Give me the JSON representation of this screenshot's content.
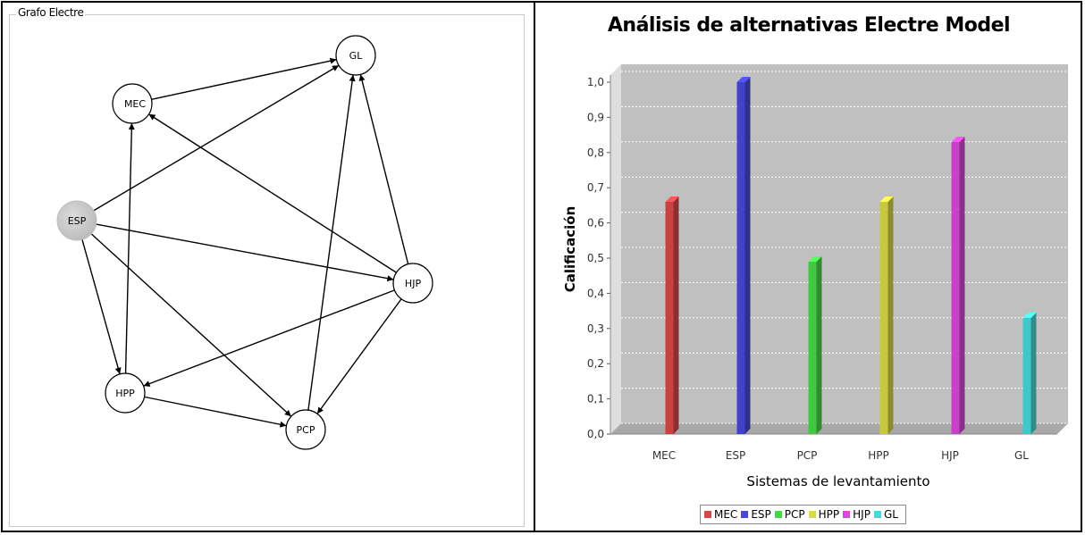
{
  "graph": {
    "title": "Grafo Electre",
    "nodes": [
      {
        "id": "GL",
        "label": "GL",
        "highlight": false
      },
      {
        "id": "MEC",
        "label": "MEC",
        "highlight": false
      },
      {
        "id": "ESP",
        "label": "ESP",
        "highlight": true
      },
      {
        "id": "HJP",
        "label": "HJP",
        "highlight": false
      },
      {
        "id": "HPP",
        "label": "HPP",
        "highlight": false
      },
      {
        "id": "PCP",
        "label": "PCP",
        "highlight": false
      }
    ],
    "edges": [
      {
        "from": "MEC",
        "to": "GL"
      },
      {
        "from": "ESP",
        "to": "GL"
      },
      {
        "from": "ESP",
        "to": "HJP"
      },
      {
        "from": "ESP",
        "to": "PCP"
      },
      {
        "from": "ESP",
        "to": "HPP"
      },
      {
        "from": "HJP",
        "to": "GL"
      },
      {
        "from": "HJP",
        "to": "MEC"
      },
      {
        "from": "HJP",
        "to": "HPP"
      },
      {
        "from": "HJP",
        "to": "PCP"
      },
      {
        "from": "HPP",
        "to": "MEC"
      },
      {
        "from": "HPP",
        "to": "PCP"
      },
      {
        "from": "PCP",
        "to": "GL"
      }
    ]
  },
  "chart_data": {
    "type": "bar",
    "title": "Análisis de alternativas Electre Model",
    "xlabel": "Sistemas de levantamiento",
    "ylabel": "Calificación",
    "categories": [
      "MEC",
      "ESP",
      "PCP",
      "HPP",
      "HJP",
      "GL"
    ],
    "values": [
      0.66,
      1.0,
      0.49,
      0.66,
      0.83,
      0.33
    ],
    "ylim": [
      0,
      1.0
    ],
    "yticks": [
      "0,0",
      "0,1",
      "0,2",
      "0,3",
      "0,4",
      "0,5",
      "0,6",
      "0,7",
      "0,8",
      "0,9",
      "1,0"
    ],
    "grid": true,
    "legend_position": "bottom",
    "colors": [
      "#ff5555",
      "#5555ff",
      "#55ff55",
      "#ffff55",
      "#ff55ff",
      "#55ffff"
    ],
    "legend": [
      "MEC",
      "ESP",
      "PCP",
      "HPP",
      "HJP",
      "GL"
    ]
  }
}
